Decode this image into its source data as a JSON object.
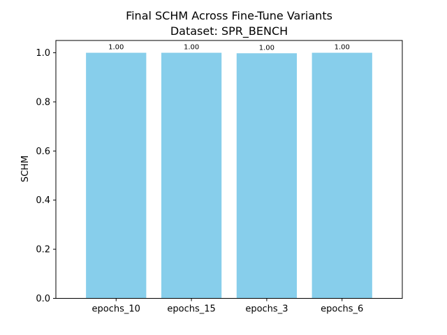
{
  "chart_data": {
    "type": "bar",
    "title": "Final SCHM Across Fine-Tune Variants",
    "subtitle": "Dataset: SPR_BENCH",
    "xlabel": "",
    "ylabel": "SCHM",
    "categories": [
      "epochs_10",
      "epochs_15",
      "epochs_3",
      "epochs_6"
    ],
    "values": [
      1.0,
      1.0,
      0.998,
      1.0
    ],
    "value_labels": [
      "1.00",
      "1.00",
      "1.00",
      "1.00"
    ],
    "ylim": [
      0,
      1.05
    ],
    "yticks": [
      0.0,
      0.2,
      0.4,
      0.6,
      0.8,
      1.0
    ],
    "ytick_labels": [
      "0.0",
      "0.2",
      "0.4",
      "0.6",
      "0.8",
      "1.0"
    ],
    "grid": false,
    "bar_color": "#87CEEB"
  }
}
